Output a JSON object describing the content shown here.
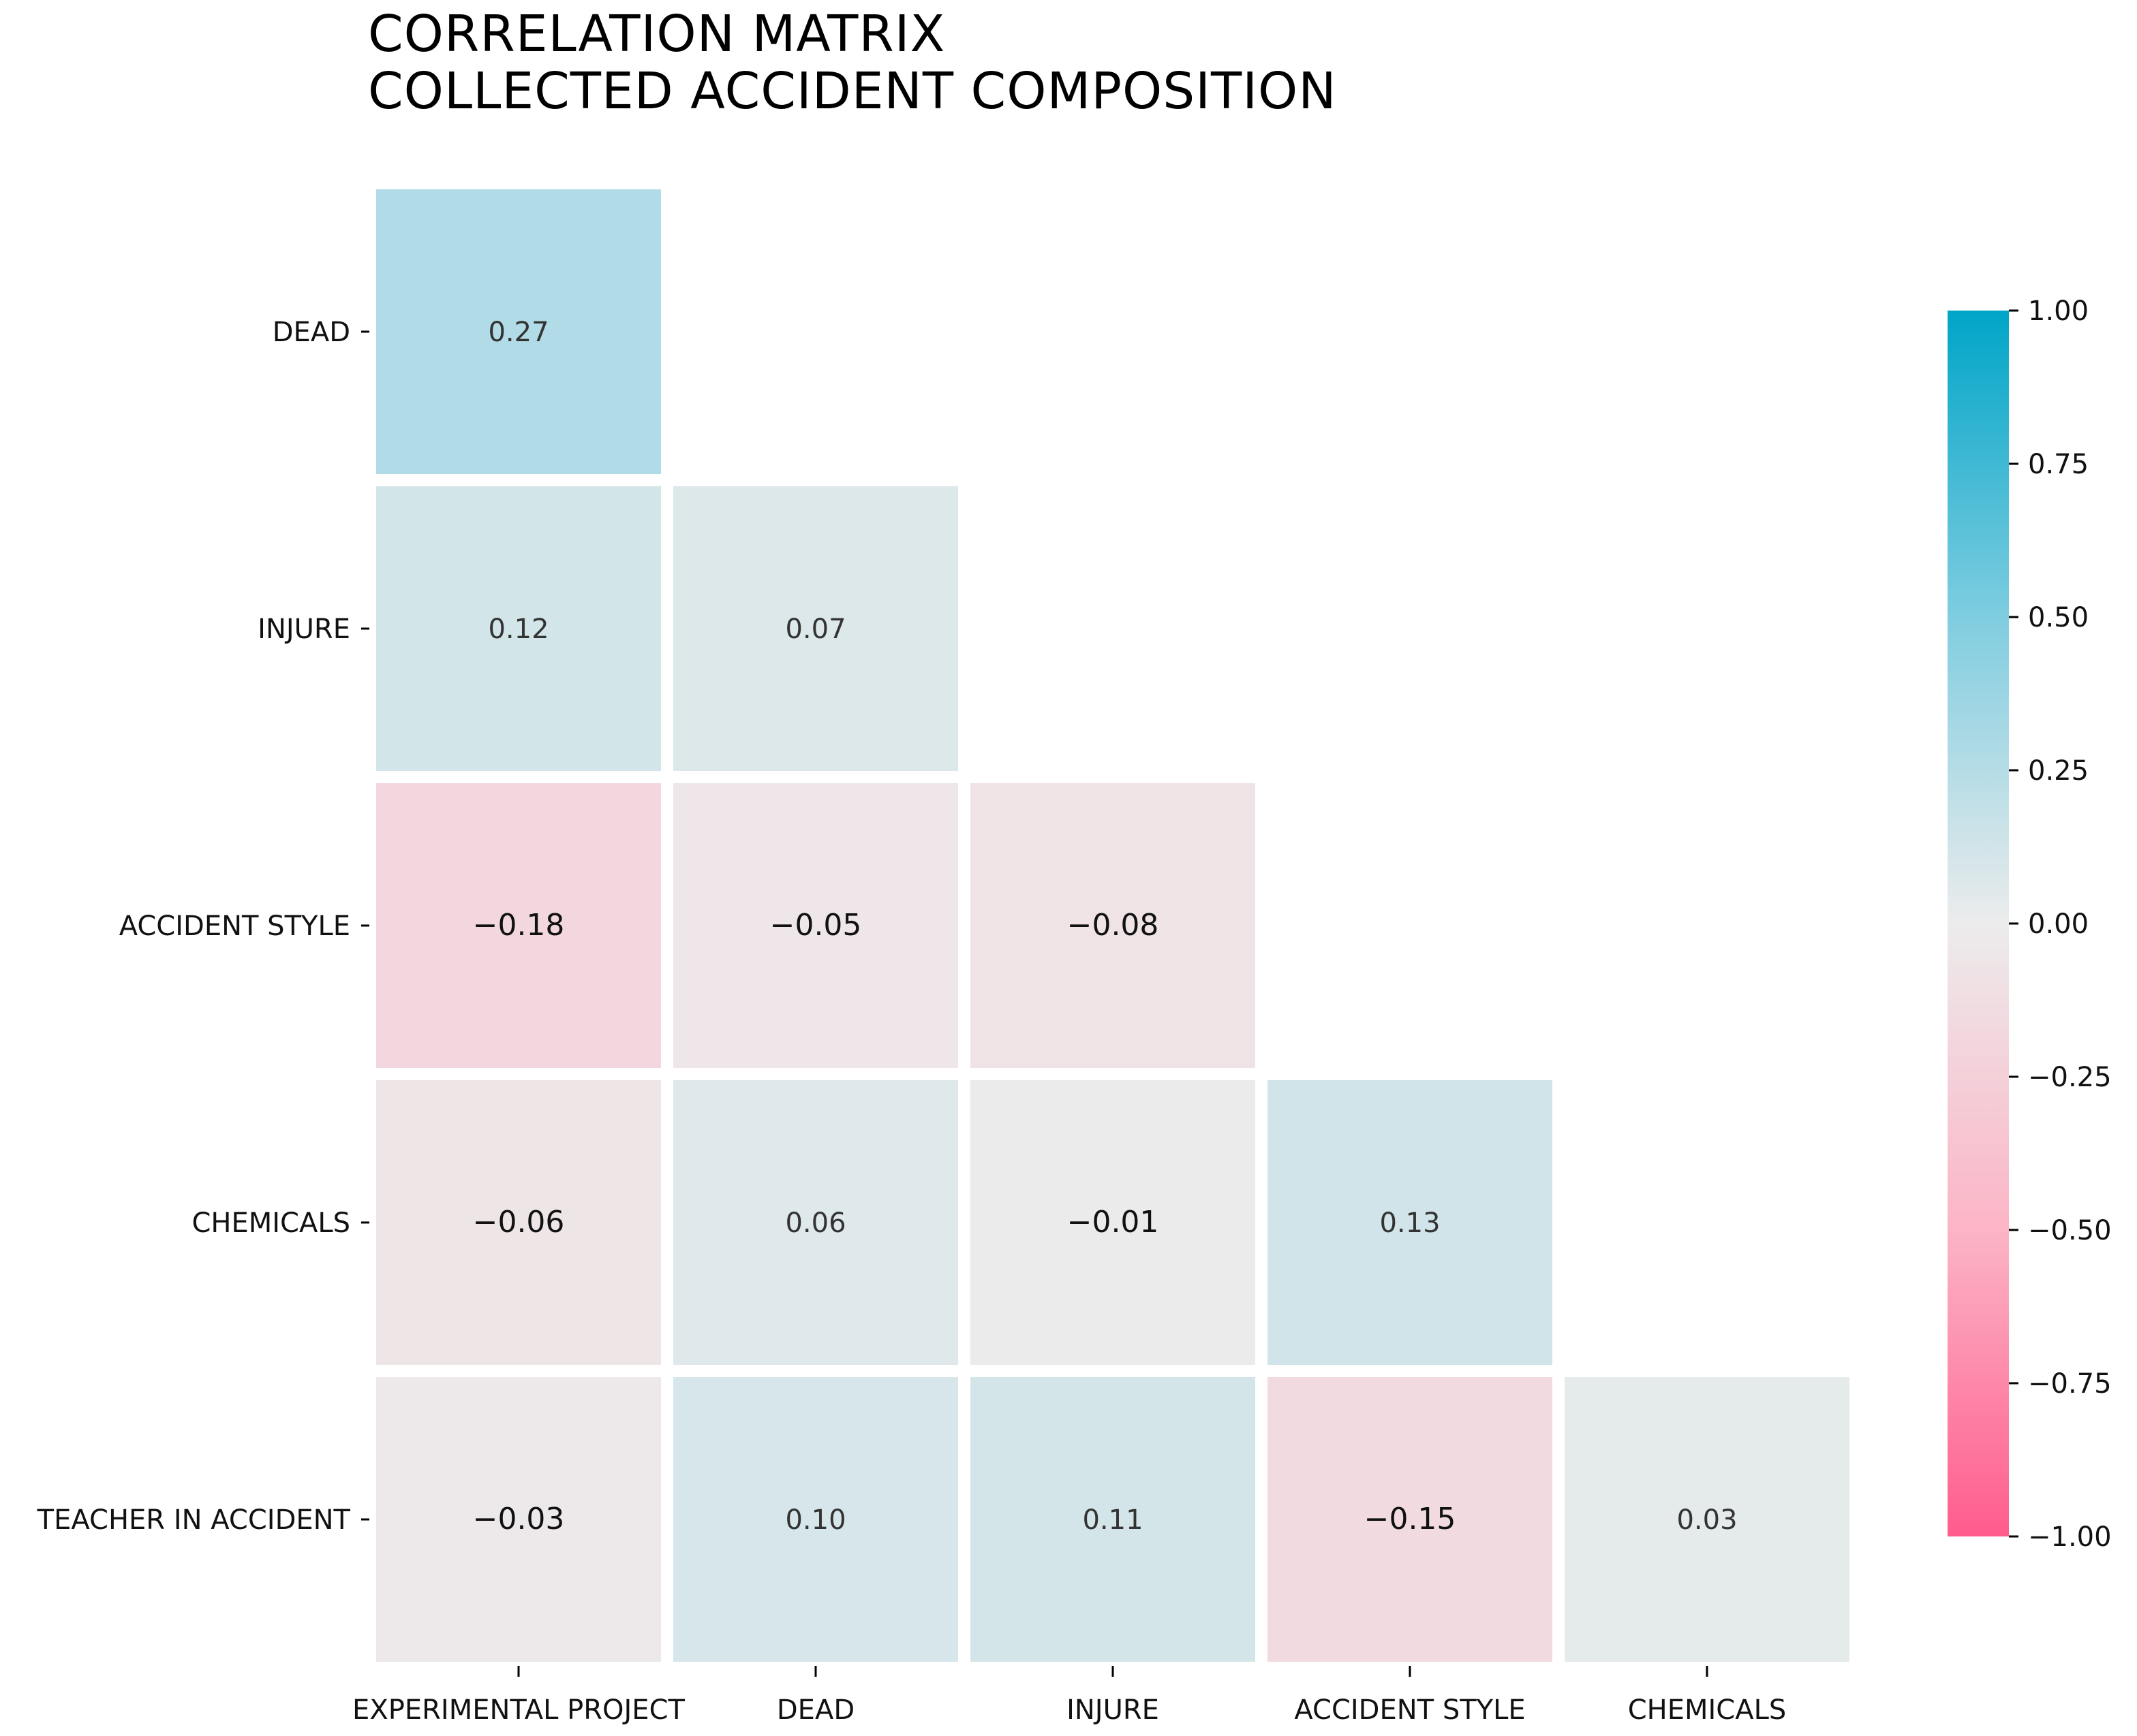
{
  "chart_data": {
    "type": "heatmap",
    "title": [
      "CORRELATION MATRIX",
      "COLLECTED ACCIDENT COMPOSITION"
    ],
    "row_labels": [
      "DEAD",
      "INJURE",
      "ACCIDENT STYLE",
      "CHEMICALS",
      "TEACHER IN ACCIDENT"
    ],
    "col_labels": [
      "EXPERIMENTAL PROJECT",
      "DEAD",
      "INJURE",
      "ACCIDENT STYLE",
      "CHEMICALS"
    ],
    "values": [
      [
        0.27,
        null,
        null,
        null,
        null
      ],
      [
        0.12,
        0.07,
        null,
        null,
        null
      ],
      [
        -0.18,
        -0.05,
        -0.08,
        null,
        null
      ],
      [
        -0.06,
        0.06,
        -0.01,
        0.13,
        null
      ],
      [
        -0.03,
        0.1,
        0.11,
        -0.15,
        0.03
      ]
    ],
    "cell_labels": [
      [
        "0.27",
        null,
        null,
        null,
        null
      ],
      [
        "0.12",
        "0.07",
        null,
        null,
        null
      ],
      [
        "−0.18",
        "−0.05",
        "−0.08",
        null,
        null
      ],
      [
        "−0.06",
        "0.06",
        "−0.01",
        "0.13",
        null
      ],
      [
        "−0.03",
        "0.10",
        "0.11",
        "−0.15",
        "0.03"
      ]
    ],
    "colorbar": {
      "min": -1.0,
      "max": 1.0,
      "ticks": [
        1.0,
        0.75,
        0.5,
        0.25,
        0.0,
        -0.25,
        -0.5,
        -0.75,
        -1.0
      ],
      "tick_labels": [
        "1.00",
        "0.75",
        "0.50",
        "0.25",
        "0.00",
        "−0.25",
        "−0.50",
        "−0.75",
        "−1.00"
      ],
      "colors": {
        "positive_end": "#00a5c8",
        "mid_positive": "#7fcde0",
        "center": "#ececec",
        "mid_negative": "#fcb4c6",
        "negative_end": "#ff5c8d"
      }
    }
  }
}
